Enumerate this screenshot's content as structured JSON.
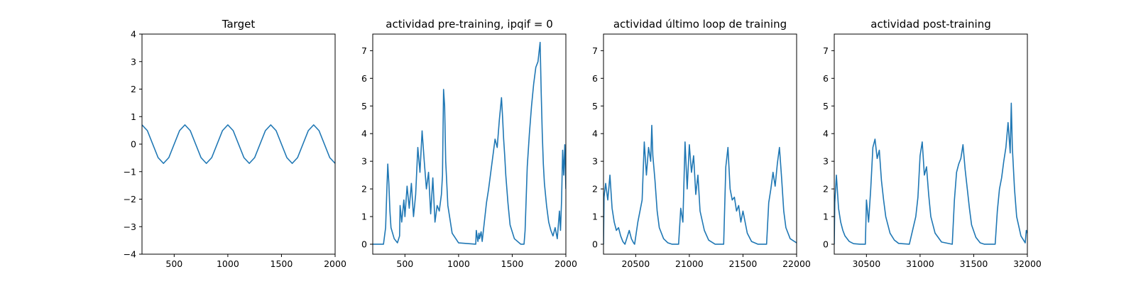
{
  "chart_data": [
    {
      "type": "line",
      "title": "Target",
      "xlabel": "",
      "ylabel": "",
      "xlim": [
        200,
        2000
      ],
      "ylim": [
        -4,
        4
      ],
      "xticks": [
        500,
        1000,
        1500,
        2000
      ],
      "yticks": [
        -4,
        -3,
        -2,
        -1,
        0,
        1,
        2,
        3,
        4
      ],
      "grid": false,
      "series": [
        {
          "x": [
            200,
            250,
            300,
            350,
            400,
            450,
            500,
            550,
            600,
            650,
            700,
            750,
            800,
            850,
            900,
            950,
            1000,
            1050,
            1100,
            1150,
            1200,
            1250,
            1300,
            1350,
            1400,
            1450,
            1500,
            1550,
            1600,
            1650,
            1700,
            1750,
            1800,
            1850,
            1900,
            1950,
            2000
          ],
          "y": [
            0.7,
            0.49,
            0.0,
            -0.49,
            -0.7,
            -0.49,
            0.0,
            0.49,
            0.7,
            0.49,
            0.0,
            -0.49,
            -0.7,
            -0.49,
            0.0,
            0.49,
            0.7,
            0.49,
            0.0,
            -0.49,
            -0.7,
            -0.49,
            0.0,
            0.49,
            0.7,
            0.49,
            0.0,
            -0.49,
            -0.7,
            -0.49,
            0.0,
            0.49,
            0.7,
            0.49,
            0.0,
            -0.49,
            -0.7
          ]
        }
      ]
    },
    {
      "type": "line",
      "title": "actividad pre-training, ipqif = 0",
      "xlabel": "",
      "ylabel": "",
      "xlim": [
        200,
        2000
      ],
      "ylim": [
        -0.36,
        7.6
      ],
      "xticks": [
        500,
        1000,
        1500,
        2000
      ],
      "yticks": [
        0,
        1,
        2,
        3,
        4,
        5,
        6,
        7
      ],
      "grid": false,
      "series": [
        {
          "x": [
            200,
            300,
            320,
            330,
            340,
            350,
            360,
            370,
            400,
            430,
            450,
            455,
            470,
            490,
            500,
            520,
            540,
            560,
            580,
            600,
            620,
            640,
            660,
            680,
            700,
            720,
            740,
            760,
            780,
            800,
            820,
            840,
            850,
            860,
            870,
            880,
            900,
            940,
            1000,
            1160,
            1165,
            1180,
            1190,
            1195,
            1210,
            1220,
            1240,
            1260,
            1280,
            1300,
            1320,
            1340,
            1360,
            1380,
            1400,
            1410,
            1420,
            1430,
            1440,
            1460,
            1480,
            1520,
            1580,
            1610,
            1620,
            1640,
            1660,
            1680,
            1700,
            1720,
            1740,
            1760,
            1770,
            1780,
            1790,
            1800,
            1820,
            1840,
            1860,
            1880,
            1900,
            1920,
            1940,
            1950,
            1960,
            1970,
            1980,
            1990,
            2000
          ],
          "y": [
            0,
            0,
            0.6,
            1.8,
            2.9,
            2.2,
            1.2,
            0.6,
            0.2,
            0.05,
            0.3,
            1.4,
            0.8,
            1.6,
            1.0,
            2.1,
            1.3,
            2.2,
            1.0,
            1.8,
            3.5,
            2.6,
            4.1,
            3.0,
            2.0,
            2.6,
            1.1,
            2.4,
            0.8,
            1.4,
            1.2,
            1.8,
            2.5,
            5.6,
            5.0,
            3.0,
            1.4,
            0.4,
            0.05,
            0,
            0.5,
            0.1,
            0.4,
            0.2,
            0.45,
            0.1,
            0.8,
            1.5,
            2.0,
            2.6,
            3.2,
            3.8,
            3.5,
            4.5,
            5.3,
            4.6,
            3.8,
            3.2,
            2.5,
            1.5,
            0.7,
            0.2,
            0,
            0,
            0.5,
            2.8,
            4.0,
            5.0,
            5.8,
            6.4,
            6.6,
            7.3,
            5.5,
            4.0,
            2.9,
            2.2,
            1.4,
            0.8,
            0.5,
            0.3,
            0.6,
            0.2,
            1.2,
            0.5,
            1.6,
            3.4,
            2.5,
            3.6,
            2.0
          ]
        }
      ]
    },
    {
      "type": "line",
      "title": "actividad último loop de training",
      "xlabel": "",
      "ylabel": "",
      "xlim": [
        20200,
        22000
      ],
      "ylim": [
        -0.36,
        7.6
      ],
      "xticks": [
        20500,
        21000,
        21500,
        22000
      ],
      "yticks": [
        0,
        1,
        2,
        3,
        4,
        5,
        6,
        7
      ],
      "grid": false,
      "series": [
        {
          "x": [
            20200,
            20205,
            20220,
            20240,
            20260,
            20280,
            20300,
            20320,
            20340,
            20360,
            20380,
            20400,
            20440,
            20460,
            20480,
            20490,
            20520,
            20560,
            20580,
            20600,
            20620,
            20640,
            20650,
            20660,
            20680,
            20700,
            20720,
            20760,
            20800,
            20840,
            20900,
            20920,
            20940,
            20960,
            20980,
            21000,
            21020,
            21040,
            21060,
            21080,
            21100,
            21140,
            21180,
            21240,
            21320,
            21340,
            21360,
            21380,
            21400,
            21420,
            21440,
            21460,
            21480,
            21500,
            21540,
            21580,
            21640,
            21720,
            21740,
            21760,
            21780,
            21800,
            21820,
            21840,
            21860,
            21880,
            21900,
            21940,
            22000
          ],
          "y": [
            0,
            1.7,
            2.2,
            1.6,
            2.5,
            1.3,
            0.8,
            0.5,
            0.6,
            0.3,
            0.1,
            0,
            0.5,
            0.2,
            0.05,
            0,
            0.8,
            1.6,
            3.7,
            2.5,
            3.5,
            3.0,
            4.3,
            3.2,
            2.3,
            1.2,
            0.6,
            0.2,
            0.05,
            0,
            0,
            1.3,
            0.8,
            3.7,
            2.0,
            3.6,
            2.6,
            3.2,
            1.8,
            2.5,
            1.2,
            0.5,
            0.15,
            0,
            0,
            2.8,
            3.5,
            2.0,
            1.6,
            1.7,
            1.2,
            1.4,
            0.8,
            1.2,
            0.4,
            0.1,
            0,
            0,
            1.5,
            2.0,
            2.6,
            2.1,
            2.9,
            3.5,
            2.4,
            1.2,
            0.6,
            0.2,
            0.05
          ]
        }
      ]
    },
    {
      "type": "line",
      "title": "actividad post-training",
      "xlabel": "",
      "ylabel": "",
      "xlim": [
        30200,
        32000
      ],
      "ylim": [
        -0.36,
        7.6
      ],
      "xticks": [
        30500,
        31000,
        31500,
        32000
      ],
      "yticks": [
        0,
        1,
        2,
        3,
        4,
        5,
        6,
        7
      ],
      "grid": false,
      "series": [
        {
          "x": [
            30200,
            30205,
            30220,
            30240,
            30260,
            30280,
            30300,
            30340,
            30380,
            30440,
            30490,
            30500,
            30520,
            30540,
            30560,
            30580,
            30600,
            30620,
            30640,
            30660,
            30680,
            30720,
            30760,
            30800,
            30900,
            30960,
            30980,
            31000,
            31020,
            31040,
            31060,
            31080,
            31100,
            31140,
            31200,
            31300,
            31320,
            31340,
            31360,
            31380,
            31400,
            31420,
            31440,
            31460,
            31480,
            31520,
            31560,
            31600,
            31700,
            31720,
            31740,
            31760,
            31780,
            31800,
            31820,
            31840,
            31850,
            31860,
            31880,
            31900,
            31940,
            31980,
            31990,
            32000
          ],
          "y": [
            0,
            1.5,
            2.5,
            1.3,
            0.8,
            0.5,
            0.3,
            0.1,
            0.02,
            0,
            0,
            1.6,
            0.8,
            2.0,
            3.5,
            3.8,
            3.1,
            3.4,
            2.3,
            1.6,
            1.0,
            0.4,
            0.15,
            0.03,
            0,
            1.0,
            1.7,
            3.2,
            3.7,
            2.5,
            2.8,
            1.8,
            1.0,
            0.4,
            0.08,
            0,
            1.6,
            2.6,
            2.9,
            3.1,
            3.6,
            2.7,
            2.0,
            1.3,
            0.7,
            0.25,
            0.05,
            0,
            0,
            1.2,
            2.0,
            2.4,
            3.0,
            3.5,
            4.4,
            3.3,
            5.1,
            3.5,
            2.0,
            1.0,
            0.3,
            0.05,
            0.5,
            0.4
          ]
        }
      ]
    }
  ]
}
